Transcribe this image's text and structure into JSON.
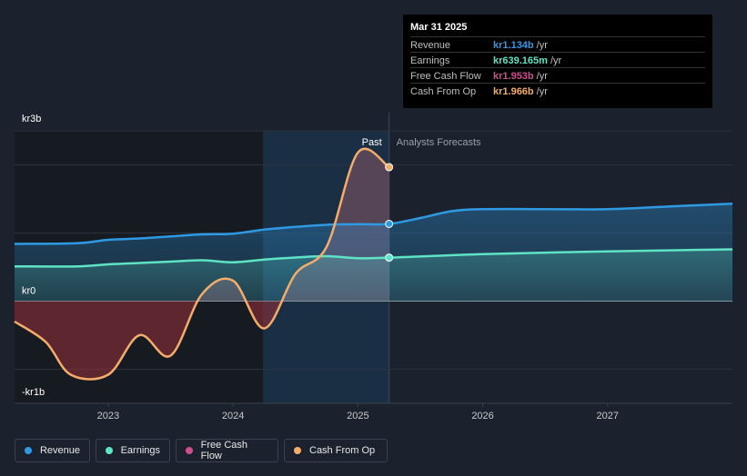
{
  "tooltip": {
    "date": "Mar 31 2025",
    "rows": [
      {
        "label": "Revenue",
        "value": "kr1.134b",
        "unit": "/yr",
        "color": "#2f9ae4"
      },
      {
        "label": "Earnings",
        "value": "kr639.165m",
        "unit": "/yr",
        "color": "#5fe3c5"
      },
      {
        "label": "Free Cash Flow",
        "value": "kr1.953b",
        "unit": "/yr",
        "color": "#cf4d8f"
      },
      {
        "label": "Cash From Op",
        "value": "kr1.966b",
        "unit": "/yr",
        "color": "#f5ac6a"
      }
    ]
  },
  "legend": [
    {
      "label": "Revenue",
      "color": "#2f9ae4"
    },
    {
      "label": "Earnings",
      "color": "#5fe3c5"
    },
    {
      "label": "Free Cash Flow",
      "color": "#cf4d8f"
    },
    {
      "label": "Cash From Op",
      "color": "#f5ac6a"
    }
  ],
  "chart_data": {
    "type": "line",
    "y_tick_labels": [
      "kr3b",
      "kr0",
      "-kr1b"
    ],
    "x_tick_labels": [
      "2023",
      "2024",
      "2025",
      "2026",
      "2027"
    ],
    "past_label": "Past",
    "forecast_label": "Analysts Forecasts",
    "ylim": [
      -1.5,
      2.5
    ],
    "xlim": [
      2022.25,
      2028.0
    ],
    "divider_x": 2025.25,
    "series": [
      {
        "name": "Revenue",
        "color": "#2f9ae4",
        "x": [
          2022.25,
          2022.75,
          2023.0,
          2023.25,
          2023.5,
          2023.75,
          2024.0,
          2024.25,
          2024.5,
          2024.75,
          2025.0,
          2025.25,
          2025.5,
          2025.75,
          2026.0,
          2026.5,
          2027.0,
          2027.5,
          2028.0
        ],
        "y": [
          0.84,
          0.85,
          0.9,
          0.92,
          0.95,
          0.98,
          0.99,
          1.05,
          1.09,
          1.12,
          1.13,
          1.134,
          1.22,
          1.32,
          1.35,
          1.35,
          1.35,
          1.39,
          1.43
        ]
      },
      {
        "name": "Earnings",
        "color": "#5fe3c5",
        "x": [
          2022.25,
          2022.75,
          2023.0,
          2023.25,
          2023.5,
          2023.75,
          2024.0,
          2024.25,
          2024.5,
          2024.75,
          2025.0,
          2025.25,
          2026.0,
          2027.0,
          2028.0
        ],
        "y": [
          0.51,
          0.51,
          0.54,
          0.56,
          0.58,
          0.6,
          0.57,
          0.61,
          0.64,
          0.66,
          0.63,
          0.639,
          0.69,
          0.73,
          0.76
        ]
      },
      {
        "name": "Cash From Op",
        "color": "#f5ac6a",
        "x": [
          2022.25,
          2022.5,
          2022.7,
          2023.0,
          2023.25,
          2023.5,
          2023.75,
          2024.0,
          2024.25,
          2024.5,
          2024.75,
          2025.0,
          2025.25
        ],
        "y": [
          -0.3,
          -0.6,
          -1.08,
          -1.08,
          -0.5,
          -0.8,
          0.1,
          0.3,
          -0.4,
          0.4,
          0.8,
          2.18,
          1.966
        ]
      }
    ]
  }
}
